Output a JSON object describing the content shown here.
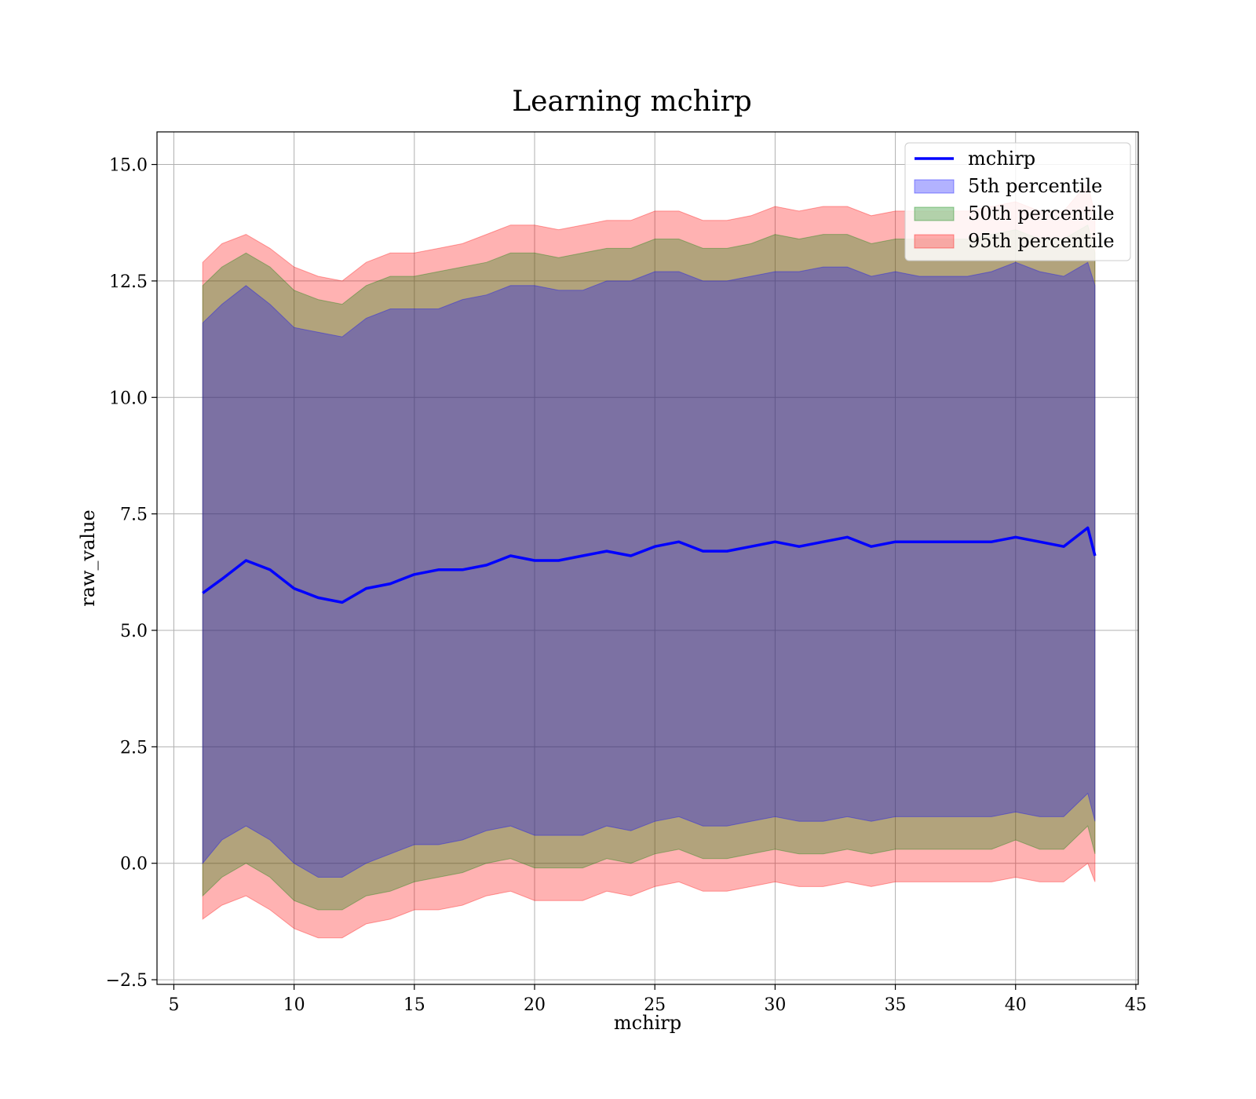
{
  "chart_data": {
    "type": "area",
    "title": "Learning mchirp",
    "xlabel": "mchirp",
    "ylabel": "raw_value",
    "xlim": [
      4.3,
      45.1
    ],
    "ylim": [
      -2.6,
      15.7
    ],
    "xticks": [
      5,
      10,
      15,
      20,
      25,
      30,
      35,
      40,
      45
    ],
    "yticks": [
      -2.5,
      0.0,
      2.5,
      5.0,
      7.5,
      10.0,
      12.5,
      15.0
    ],
    "xtick_labels": [
      "5",
      "10",
      "15",
      "20",
      "25",
      "30",
      "35",
      "40",
      "45"
    ],
    "ytick_labels": [
      "−2.5",
      "0.0",
      "2.5",
      "5.0",
      "7.5",
      "10.0",
      "12.5",
      "15.0"
    ],
    "grid": true,
    "legend_position": "top-right",
    "x": [
      6.2,
      7,
      8,
      9,
      10,
      11,
      12,
      13,
      14,
      15,
      16,
      17,
      18,
      19,
      20,
      21,
      22,
      23,
      24,
      25,
      26,
      27,
      28,
      29,
      30,
      31,
      32,
      33,
      34,
      35,
      36,
      37,
      38,
      39,
      40,
      41,
      42,
      43,
      43.3
    ],
    "series": [
      {
        "name": "mchirp",
        "kind": "line",
        "color": "#0000ff",
        "values": [
          5.8,
          6.1,
          6.5,
          6.3,
          5.9,
          5.7,
          5.6,
          5.9,
          6.0,
          6.2,
          6.3,
          6.3,
          6.4,
          6.6,
          6.5,
          6.5,
          6.6,
          6.7,
          6.6,
          6.8,
          6.9,
          6.7,
          6.7,
          6.8,
          6.9,
          6.8,
          6.9,
          7.0,
          6.8,
          6.9,
          6.9,
          6.9,
          6.9,
          6.9,
          7.0,
          6.9,
          6.8,
          7.2,
          6.6
        ]
      },
      {
        "name": "5th percentile",
        "kind": "band",
        "color": "#0000ff",
        "lower": [
          0.0,
          0.5,
          0.8,
          0.5,
          0.0,
          -0.3,
          -0.3,
          0.0,
          0.2,
          0.4,
          0.4,
          0.5,
          0.7,
          0.8,
          0.6,
          0.6,
          0.6,
          0.8,
          0.7,
          0.9,
          1.0,
          0.8,
          0.8,
          0.9,
          1.0,
          0.9,
          0.9,
          1.0,
          0.9,
          1.0,
          1.0,
          1.0,
          1.0,
          1.0,
          1.1,
          1.0,
          1.0,
          1.5,
          0.9
        ],
        "upper": [
          11.6,
          12.0,
          12.4,
          12.0,
          11.5,
          11.4,
          11.3,
          11.7,
          11.9,
          11.9,
          11.9,
          12.1,
          12.2,
          12.4,
          12.4,
          12.3,
          12.3,
          12.5,
          12.5,
          12.7,
          12.7,
          12.5,
          12.5,
          12.6,
          12.7,
          12.7,
          12.8,
          12.8,
          12.6,
          12.7,
          12.6,
          12.6,
          12.6,
          12.7,
          12.9,
          12.7,
          12.6,
          12.9,
          12.4
        ]
      },
      {
        "name": "50th percentile",
        "kind": "band",
        "color": "#008000",
        "lower": [
          -0.7,
          -0.3,
          0.0,
          -0.3,
          -0.8,
          -1.0,
          -1.0,
          -0.7,
          -0.6,
          -0.4,
          -0.3,
          -0.2,
          0.0,
          0.1,
          -0.1,
          -0.1,
          -0.1,
          0.1,
          0.0,
          0.2,
          0.3,
          0.1,
          0.1,
          0.2,
          0.3,
          0.2,
          0.2,
          0.3,
          0.2,
          0.3,
          0.3,
          0.3,
          0.3,
          0.3,
          0.5,
          0.3,
          0.3,
          0.8,
          0.2
        ],
        "upper": [
          12.4,
          12.8,
          13.1,
          12.8,
          12.3,
          12.1,
          12.0,
          12.4,
          12.6,
          12.6,
          12.7,
          12.8,
          12.9,
          13.1,
          13.1,
          13.0,
          13.1,
          13.2,
          13.2,
          13.4,
          13.4,
          13.2,
          13.2,
          13.3,
          13.5,
          13.4,
          13.5,
          13.5,
          13.3,
          13.4,
          13.4,
          13.4,
          13.4,
          13.5,
          13.6,
          13.4,
          13.4,
          13.7,
          13.1
        ]
      },
      {
        "name": "95th percentile",
        "kind": "band",
        "color": "#ff0000",
        "lower": [
          -1.2,
          -0.9,
          -0.7,
          -1.0,
          -1.4,
          -1.6,
          -1.6,
          -1.3,
          -1.2,
          -1.0,
          -1.0,
          -0.9,
          -0.7,
          -0.6,
          -0.8,
          -0.8,
          -0.8,
          -0.6,
          -0.7,
          -0.5,
          -0.4,
          -0.6,
          -0.6,
          -0.5,
          -0.4,
          -0.5,
          -0.5,
          -0.4,
          -0.5,
          -0.4,
          -0.4,
          -0.4,
          -0.4,
          -0.4,
          -0.3,
          -0.4,
          -0.4,
          0.0,
          -0.4
        ],
        "upper": [
          12.9,
          13.3,
          13.5,
          13.2,
          12.8,
          12.6,
          12.5,
          12.9,
          13.1,
          13.1,
          13.2,
          13.3,
          13.5,
          13.7,
          13.7,
          13.6,
          13.7,
          13.8,
          13.8,
          14.0,
          14.0,
          13.8,
          13.8,
          13.9,
          14.1,
          14.0,
          14.1,
          14.1,
          13.9,
          14.0,
          14.0,
          14.0,
          14.0,
          14.1,
          14.2,
          14.0,
          14.0,
          14.6,
          13.9
        ]
      }
    ]
  }
}
